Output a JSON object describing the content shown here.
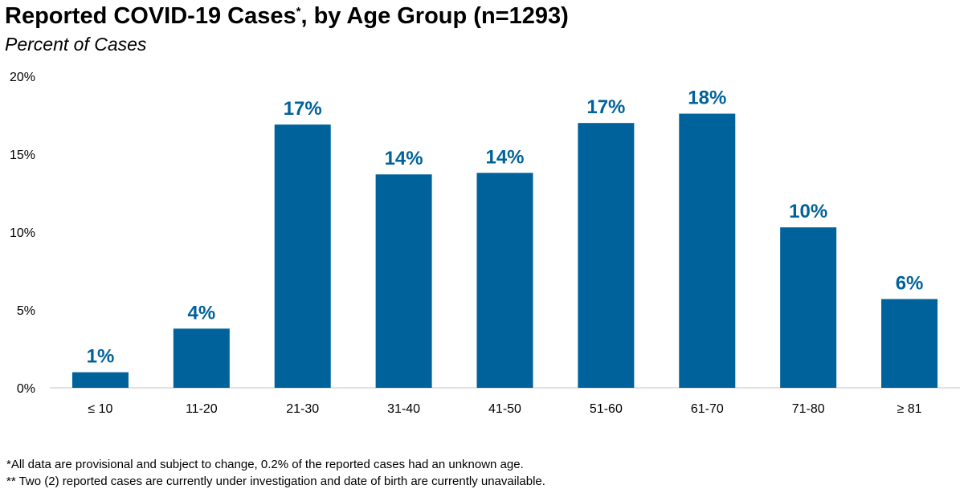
{
  "chart_data": {
    "type": "bar",
    "title_main": "Reported COVID-19 Cases",
    "title_marker": "*",
    "title_rest": ", by Age Group (n=1293)",
    "subtitle": "Percent of Cases",
    "categories": [
      "≤ 10",
      "11-20",
      "21-30",
      "31-40",
      "41-50",
      "51-60",
      "61-70",
      "71-80",
      "≥ 81"
    ],
    "values": [
      1.0,
      3.8,
      16.9,
      13.7,
      13.8,
      17.0,
      17.6,
      10.3,
      5.7
    ],
    "data_labels": [
      "1%",
      "4%",
      "17%",
      "14%",
      "14%",
      "17%",
      "18%",
      "10%",
      "6%"
    ],
    "yticks": [
      0,
      5,
      10,
      15,
      20
    ],
    "ytick_labels": [
      "0%",
      "5%",
      "10%",
      "15%",
      "20%"
    ],
    "ylim": [
      0,
      20
    ],
    "grid": false,
    "legend": "none",
    "bar_color": "#00629b"
  },
  "footnotes": {
    "note1": "*All data are provisional and subject to change, 0.2% of the reported cases had an unknown age.",
    "note2": "** Two (2) reported cases are currently under investigation and date of birth are currently unavailable."
  }
}
